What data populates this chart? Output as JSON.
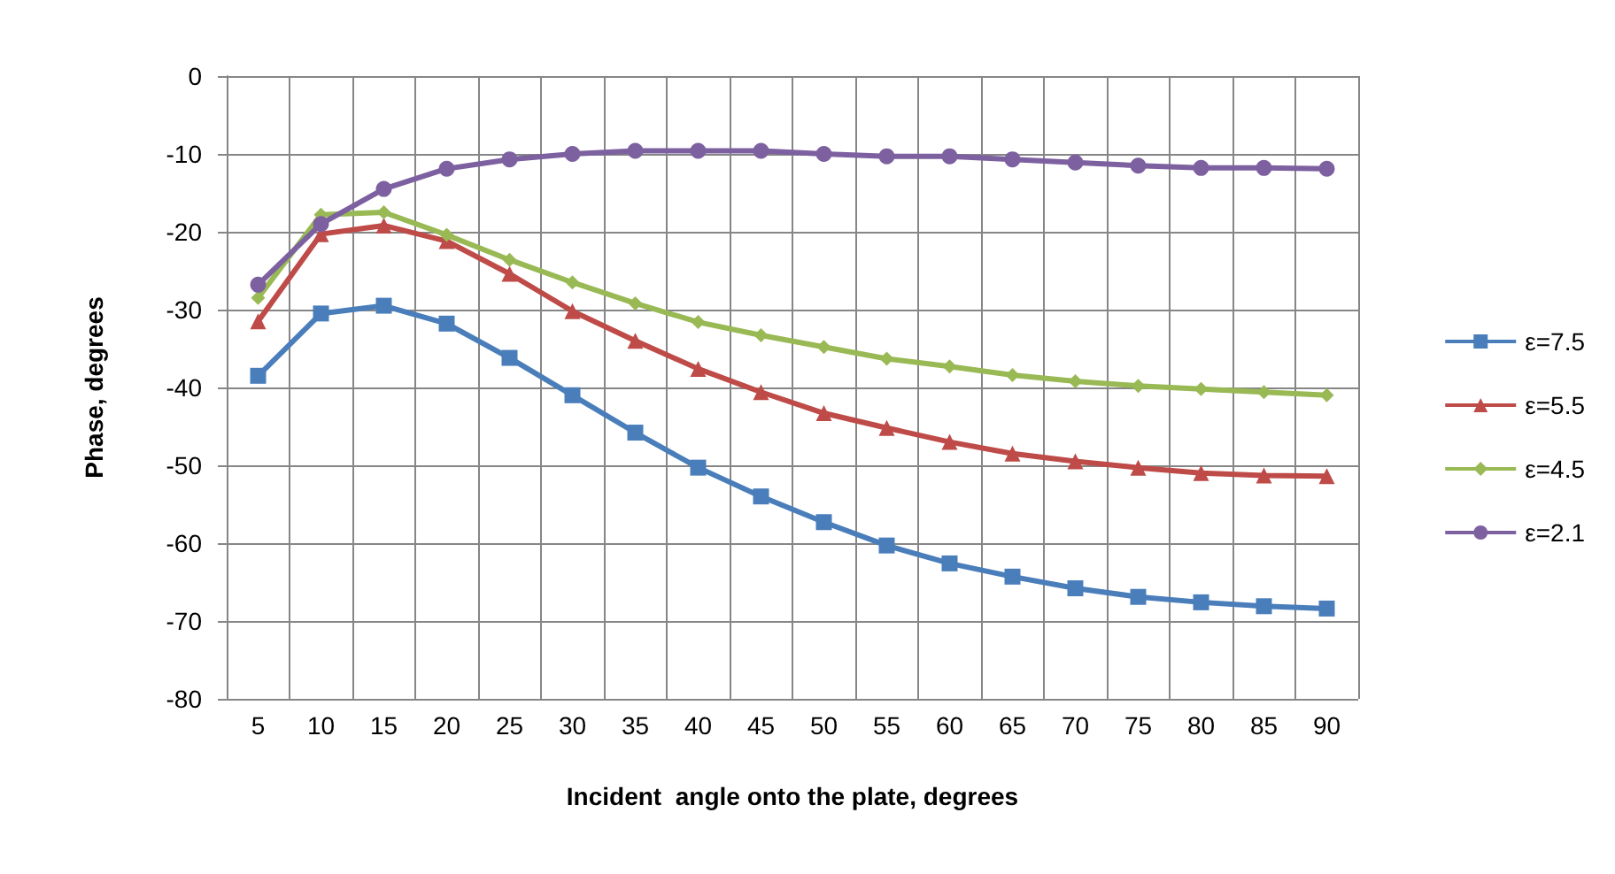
{
  "chart_data": {
    "type": "line",
    "xlabel": "Incident  angle onto the plate, degrees",
    "ylabel": "Phase, degrees",
    "categories": [
      "5",
      "10",
      "15",
      "20",
      "25",
      "30",
      "35",
      "40",
      "45",
      "50",
      "55",
      "60",
      "65",
      "70",
      "75",
      "80",
      "85",
      "90"
    ],
    "ylim": [
      -80,
      0
    ],
    "yticks": [
      -80,
      -70,
      -60,
      -50,
      -40,
      -30,
      -20,
      -10,
      0
    ],
    "grid": true,
    "legend": "right",
    "line_style": "solid",
    "series": [
      {
        "name": "ε=7.5",
        "color": "#4a7ebb",
        "marker": "square",
        "values": [
          -38.5,
          -30.5,
          -29.5,
          -31.8,
          -36.2,
          -41,
          -45.8,
          -50.3,
          -54,
          -57.3,
          -60.3,
          -62.6,
          -64.3,
          -65.8,
          -66.9,
          -67.6,
          -68.1,
          -68.4
        ]
      },
      {
        "name": "ε=5.5",
        "color": "#be4b48",
        "marker": "triangle",
        "values": [
          -31.5,
          -20.3,
          -19.2,
          -21.2,
          -25.4,
          -30.2,
          -34,
          -37.6,
          -40.6,
          -43.3,
          -45.2,
          -47,
          -48.5,
          -49.5,
          -50.3,
          -51,
          -51.3,
          -51.4
        ]
      },
      {
        "name": "ε=4.5",
        "color": "#98b954",
        "marker": "diamond",
        "values": [
          -28.5,
          -17.8,
          -17.5,
          -20.4,
          -23.6,
          -26.5,
          -29.2,
          -31.6,
          -33.3,
          -34.8,
          -36.3,
          -37.3,
          -38.4,
          -39.2,
          -39.8,
          -40.2,
          -40.6,
          -41
        ]
      },
      {
        "name": "ε=2.1",
        "color": "#7d60a0",
        "marker": "circle",
        "values": [
          -26.8,
          -19,
          -14.5,
          -11.9,
          -10.7,
          -10,
          -9.6,
          -9.6,
          -9.6,
          -10,
          -10.3,
          -10.3,
          -10.7,
          -11.1,
          -11.5,
          -11.8,
          -11.8,
          -11.9
        ]
      }
    ]
  }
}
